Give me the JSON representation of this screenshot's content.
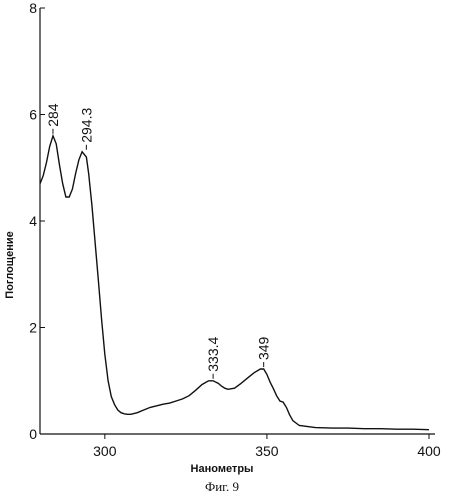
{
  "chart_data": {
    "type": "line",
    "title": "",
    "xlabel": "Нанометры",
    "ylabel": "Поглощение",
    "caption": "Фиг. 9",
    "xlim": [
      280,
      400
    ],
    "ylim": [
      0,
      8
    ],
    "xticks": [
      "300",
      "350",
      "400"
    ],
    "yticks": [
      "0",
      "2",
      "4",
      "6",
      "8"
    ],
    "grid": false,
    "series": [
      {
        "x": [
          280,
          281,
          282,
          283,
          284,
          285,
          286,
          287,
          288,
          289,
          290,
          291,
          292,
          293,
          294.3,
          295,
          296,
          297,
          298,
          299,
          300,
          301,
          302,
          303,
          304,
          305,
          306,
          307,
          308,
          310,
          312,
          314,
          316,
          318,
          320,
          322,
          324,
          326,
          328,
          330,
          332,
          333.4,
          335,
          336,
          337,
          338,
          340,
          342,
          344,
          346,
          348,
          349,
          350,
          351,
          352,
          353,
          354,
          355,
          356,
          357,
          358,
          360,
          365,
          370,
          375,
          380,
          385,
          390,
          395,
          400
        ],
        "y": [
          4.7,
          4.85,
          5.1,
          5.4,
          5.6,
          5.45,
          5.05,
          4.7,
          4.45,
          4.45,
          4.6,
          4.9,
          5.15,
          5.3,
          5.2,
          4.9,
          4.3,
          3.6,
          2.9,
          2.15,
          1.5,
          1.0,
          0.7,
          0.55,
          0.45,
          0.4,
          0.38,
          0.37,
          0.37,
          0.4,
          0.45,
          0.5,
          0.53,
          0.56,
          0.58,
          0.62,
          0.66,
          0.72,
          0.82,
          0.93,
          1.0,
          1.0,
          0.95,
          0.9,
          0.86,
          0.84,
          0.86,
          0.95,
          1.05,
          1.15,
          1.22,
          1.22,
          1.12,
          0.97,
          0.85,
          0.72,
          0.62,
          0.6,
          0.5,
          0.36,
          0.25,
          0.16,
          0.12,
          0.11,
          0.11,
          0.1,
          0.1,
          0.09,
          0.09,
          0.08
        ]
      }
    ],
    "annotations": [
      {
        "x": 284,
        "y": 5.6,
        "label": "284"
      },
      {
        "x": 294.3,
        "y": 5.3,
        "label": "294.3"
      },
      {
        "x": 333.4,
        "y": 1.0,
        "label": "333.4"
      },
      {
        "x": 349,
        "y": 1.22,
        "label": "349"
      }
    ]
  }
}
